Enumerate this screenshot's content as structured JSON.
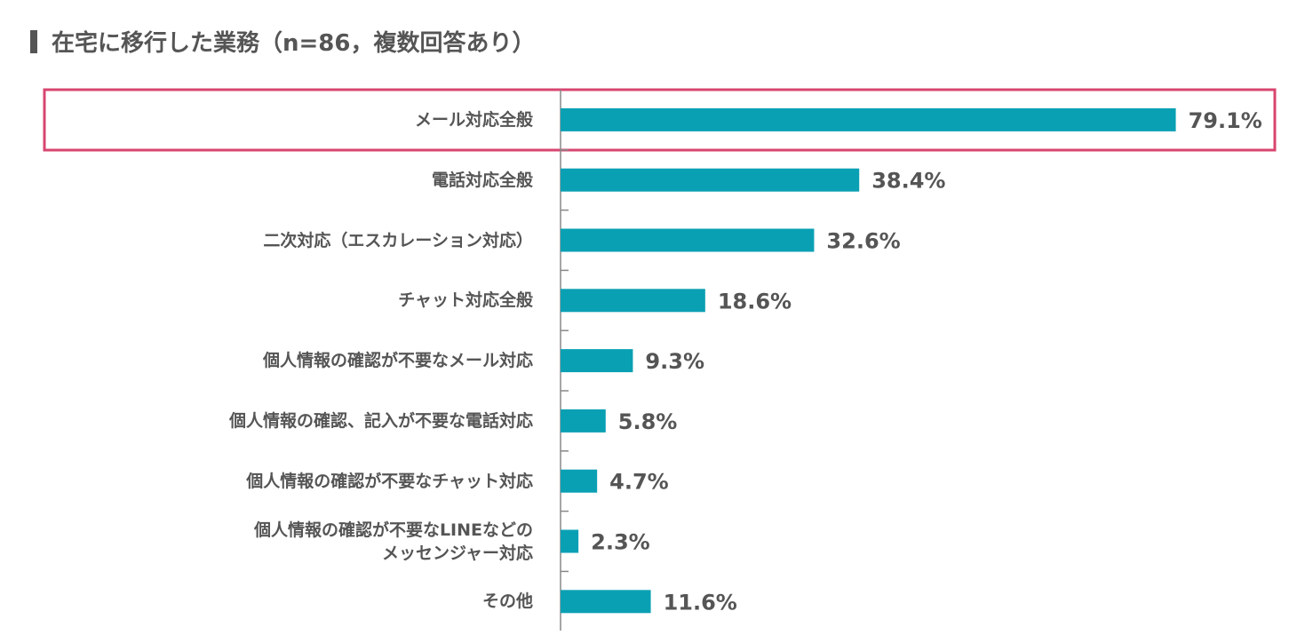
{
  "chart_data": {
    "type": "barh",
    "title": "在宅に移行した業務（n=86，複数回答あり）",
    "categories": [
      "メール対応全般",
      "電話対応全般",
      "二次対応（エスカレーション対応）",
      "チャット対応全般",
      "個人情報の確認が不要なメール対応",
      "個人情報の確認、記入が不要な電話対応",
      "個人情報の確認が不要なチャット対応",
      "個人情報の確認が不要なLINEなどの\nメッセンジャー対応",
      "その他"
    ],
    "values": [
      79.1,
      38.4,
      32.6,
      18.6,
      9.3,
      5.8,
      4.7,
      2.3,
      11.6
    ],
    "value_labels": [
      "79.1%",
      "38.4%",
      "32.6%",
      "18.6%",
      "9.3%",
      "5.8%",
      "4.7%",
      "2.3%",
      "11.6%"
    ],
    "color": "#0aa0b4",
    "xlim": [
      0,
      90
    ]
  }
}
